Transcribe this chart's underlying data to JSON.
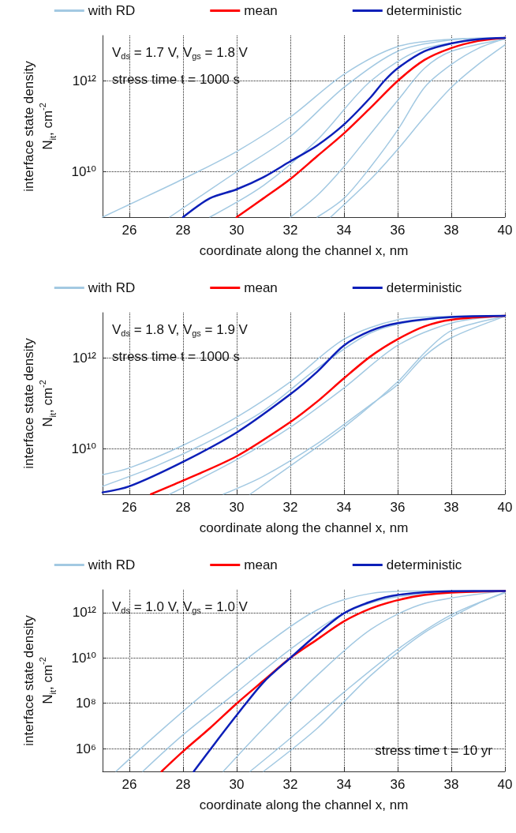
{
  "chart_data": [
    {
      "type": "line",
      "xlabel": "coordinate along the channel x, nm",
      "ylabel": "interface state density\nN$_{it}$, cm$^{-2}$",
      "log": "y",
      "grid": true,
      "legend": "top",
      "marker": "none",
      "line_style": "solid",
      "xlim": [
        25,
        40
      ],
      "xticks": [
        26,
        28,
        30,
        32,
        34,
        36,
        38,
        40
      ],
      "ylim": [
        1000000000.0,
        10000000000000.0
      ],
      "yticks": [
        {
          "value": 10000000000.0,
          "label": "10¹⁰"
        },
        {
          "value": 1000000000000.0,
          "label": "10¹²"
        }
      ],
      "annotations": [
        "V$_{ds}$ = 1.7 V, V$_{gs}$ = 1.8 V",
        "stress time t = 1000 s"
      ],
      "series": [
        {
          "name": "with RD",
          "color": "#a3c9e2",
          "x": [
            25,
            26,
            28,
            30,
            32,
            34,
            36,
            38,
            40
          ],
          "values": [
            1000000000.0,
            1900000000.0,
            6900000000.0,
            28000000000.0,
            160000000000.0,
            1400000000000.0,
            5700000000000.0,
            8300000000000.0,
            8900000000000.0
          ]
        },
        {
          "color": "#a3c9e2",
          "x": [
            27.5,
            30,
            32,
            34,
            36,
            38,
            40
          ],
          "values": [
            1000000000.0,
            10000000000.0,
            60000000000.0,
            720000000000.0,
            4500000000000.0,
            8000000000000.0,
            8900000000000.0
          ]
        },
        {
          "color": "#a3c9e2",
          "x": [
            29,
            31,
            33,
            35,
            37,
            40
          ],
          "values": [
            1000000000.0,
            5000000000.0,
            50000000000.0,
            1000000000000.0,
            5200000000000.0,
            8900000000000.0
          ]
        },
        {
          "color": "#a3c9e2",
          "x": [
            32,
            33,
            34,
            35,
            36,
            37,
            38,
            40
          ],
          "values": [
            1000000000.0,
            3000000000.0,
            13000000000.0,
            70000000000.0,
            370000000000.0,
            1900000000000.0,
            4500000000000.0,
            8300000000000.0
          ]
        },
        {
          "color": "#a3c9e2",
          "x": [
            33,
            34,
            35,
            36,
            37,
            38,
            39,
            40
          ],
          "values": [
            1000000000.0,
            2600000000.0,
            13000000000.0,
            83000000000.0,
            720000000000.0,
            2300000000000.0,
            5200000000000.0,
            8500000000000.0
          ]
        },
        {
          "color": "#a3c9e2",
          "x": [
            33.5,
            35,
            36,
            37,
            38,
            39,
            40
          ],
          "values": [
            1000000000.0,
            6900000000.0,
            31000000000.0,
            160000000000.0,
            720000000000.0,
            2300000000000.0,
            6200000000000.0
          ]
        },
        {
          "name": "mean",
          "color": "#ff0000",
          "x": [
            30,
            31,
            32,
            33,
            34,
            35,
            36,
            37,
            38,
            39,
            40
          ],
          "values": [
            1000000000.0,
            2600000000.0,
            6900000000.0,
            22000000000.0,
            70000000000.0,
            260000000000.0,
            1000000000000.0,
            2900000000000.0,
            5300000000000.0,
            7600000000000.0,
            8900000000000.0
          ]
        },
        {
          "name": "deterministic",
          "color": "#0c1fb8",
          "x": [
            28,
            29,
            30,
            31,
            32,
            33,
            34,
            35,
            35.5,
            36,
            37,
            38,
            39,
            40
          ],
          "values": [
            1000000000.0,
            2600000000.0,
            4100000000.0,
            7600000000.0,
            17000000000.0,
            38000000000.0,
            110000000000.0,
            440000000000.0,
            1000000000000.0,
            1900000000000.0,
            4500000000000.0,
            6700000000000.0,
            8300000000000.0,
            8900000000000.0
          ]
        }
      ]
    },
    {
      "type": "line",
      "xlabel": "coordinate along the channel x, nm",
      "ylabel": "interface state density\nN$_{it}$, cm$^{-2}$",
      "log": "y",
      "grid": true,
      "legend": "top",
      "marker": "none",
      "line_style": "solid",
      "xlim": [
        25,
        40
      ],
      "xticks": [
        26,
        28,
        30,
        32,
        34,
        36,
        38,
        40
      ],
      "ylim": [
        1000000000.0,
        10000000000000.0
      ],
      "yticks": [
        {
          "value": 10000000000.0,
          "label": "10¹⁰"
        },
        {
          "value": 1000000000000.0,
          "label": "10¹²"
        }
      ],
      "annotations": [
        "V$_{ds}$ = 1.8 V, V$_{gs}$ = 1.9 V",
        "stress time t = 1000 s"
      ],
      "series": [
        {
          "name": "with RD",
          "color": "#a3c9e2",
          "x": [
            25,
            26,
            28,
            30,
            32,
            34,
            36,
            38,
            40
          ],
          "values": [
            2700000000.0,
            3800000000.0,
            12000000000.0,
            50000000000.0,
            300000000000.0,
            2600000000000.0,
            7000000000000.0,
            8300000000000.0,
            8500000000000.0
          ]
        },
        {
          "color": "#a3c9e2",
          "x": [
            25,
            27,
            29,
            31,
            33,
            35,
            37,
            40
          ],
          "values": [
            1500000000.0,
            4200000000.0,
            15000000000.0,
            69000000000.0,
            590000000000.0,
            3600000000000.0,
            7000000000000.0,
            8500000000000.0
          ]
        },
        {
          "color": "#a3c9e2",
          "x": [
            27.5,
            30,
            32,
            34,
            36,
            38,
            40
          ],
          "values": [
            1000000000.0,
            5800000000.0,
            30000000000.0,
            220000000000.0,
            1900000000000.0,
            5900000000000.0,
            8500000000000.0
          ]
        },
        {
          "color": "#a3c9e2",
          "x": [
            29.5,
            31,
            33,
            35,
            36,
            37,
            38,
            40
          ],
          "values": [
            1000000000.0,
            2500000000.0,
            13000000000.0,
            95000000000.0,
            260000000000.0,
            1100000000000.0,
            2800000000000.0,
            8300000000000.0
          ]
        },
        {
          "color": "#a3c9e2",
          "x": [
            30.5,
            32,
            34,
            36,
            37,
            38,
            40
          ],
          "values": [
            1000000000.0,
            4200000000.0,
            30000000000.0,
            300000000000.0,
            1300000000000.0,
            4000000000000.0,
            8300000000000.0
          ]
        },
        {
          "name": "mean",
          "color": "#ff0000",
          "x": [
            26.8,
            28,
            30,
            32,
            33,
            34,
            35,
            36,
            37,
            38,
            40
          ],
          "values": [
            1000000000.0,
            2000000000.0,
            6900000000.0,
            39000000000.0,
            110000000000.0,
            360000000000.0,
            1100000000000.0,
            2600000000000.0,
            5000000000000.0,
            7000000000000.0,
            8500000000000.0
          ]
        },
        {
          "name": "deterministic",
          "color": "#0c1fb8",
          "x": [
            25,
            26,
            28,
            30,
            32,
            33,
            34,
            35,
            36,
            38,
            40
          ],
          "values": [
            1100000000.0,
            1500000000.0,
            5200000000.0,
            23000000000.0,
            160000000000.0,
            500000000000.0,
            1900000000000.0,
            4000000000000.0,
            5900000000000.0,
            8000000000000.0,
            8500000000000.0
          ]
        }
      ]
    },
    {
      "type": "line",
      "xlabel": "coordinate along the channel x, nm",
      "ylabel": "interface state density\nN$_{it}$, cm$^{-2}$",
      "log": "y",
      "grid": true,
      "legend": "top",
      "marker": "none",
      "line_style": "solid",
      "xlim": [
        25,
        40
      ],
      "xticks": [
        26,
        28,
        30,
        32,
        34,
        36,
        38,
        40
      ],
      "ylim": [
        100000.0,
        10000000000000.0
      ],
      "yticks": [
        {
          "value": 1000000.0,
          "label": "10⁶"
        },
        {
          "value": 100000000.0,
          "label": "10⁸"
        },
        {
          "value": 10000000000.0,
          "label": "10¹⁰"
        },
        {
          "value": 1000000000000.0,
          "label": "10¹²"
        }
      ],
      "annotations": [
        "V$_{ds}$ = 1.0 V, V$_{gs}$ = 1.0 V",
        "stress time t = 10 yr"
      ],
      "series": [
        {
          "name": "with RD",
          "color": "#a3c9e2",
          "x": [
            25.5,
            27,
            29,
            31,
            33,
            35,
            37,
            40
          ],
          "values": [
            100000.0,
            4100000.0,
            440000000.0,
            33000000000.0,
            1300000000000.0,
            6900000000000.0,
            8900000000000.0,
            8900000000000.0
          ]
        },
        {
          "color": "#a3c9e2",
          "x": [
            26.5,
            28,
            30,
            32,
            34,
            36,
            40
          ],
          "values": [
            100000.0,
            4100000.0,
            310000000.0,
            24000000000.0,
            930000000000.0,
            5000000000000.0,
            8900000000000.0
          ]
        },
        {
          "color": "#a3c9e2",
          "x": [
            29.5,
            31,
            33,
            35,
            37,
            40
          ],
          "values": [
            100000.0,
            7900000.0,
            1700000000.0,
            180000000000.0,
            2500000000000.0,
            8900000000000.0
          ]
        },
        {
          "color": "#a3c9e2",
          "x": [
            30.5,
            32,
            34,
            36,
            38,
            40
          ],
          "values": [
            100000.0,
            2900000.0,
            310000000.0,
            24000000000.0,
            790000000000.0,
            7400000000000.0
          ]
        },
        {
          "color": "#a3c9e2",
          "x": [
            31,
            33,
            35,
            37,
            39,
            40
          ],
          "values": [
            100000.0,
            7900000.0,
            1700000000.0,
            130000000000.0,
            2500000000000.0,
            7900000000000.0
          ]
        },
        {
          "name": "mean",
          "color": "#ff0000",
          "x": [
            27.2,
            28,
            29,
            30,
            31,
            32,
            33,
            34,
            35,
            36,
            37,
            38,
            40
          ],
          "values": [
            100000.0,
            760000.0,
            8000000.0,
            98000000.0,
            1000000000.0,
            10000000000.0,
            65000000000.0,
            410000000000.0,
            1500000000000.0,
            3500000000000.0,
            5900000000000.0,
            7600000000000.0,
            8900000000000.0
          ]
        },
        {
          "name": "deterministic",
          "color": "#0c1fb8",
          "x": [
            28.4,
            29.2,
            30,
            31,
            32,
            33,
            34,
            35,
            36,
            38,
            40
          ],
          "values": [
            100000.0,
            1800000.0,
            30000000.0,
            850000000.0,
            10000000000.0,
            110000000000.0,
            930000000000.0,
            3000000000000.0,
            5900000000000.0,
            8700000000000.0,
            8900000000000.0
          ]
        }
      ]
    }
  ]
}
